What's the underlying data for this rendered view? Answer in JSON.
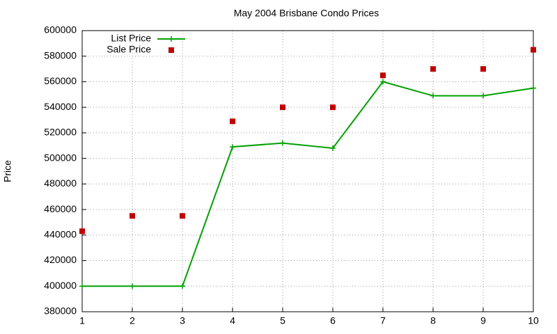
{
  "chart_data": {
    "type": "line",
    "title": "May 2004 Brisbane Condo Prices",
    "ylabel": "Price",
    "x": [
      1,
      2,
      3,
      4,
      5,
      6,
      7,
      8,
      9,
      10
    ],
    "series": [
      {
        "name": "List Price",
        "color": "#00a000",
        "mode": "lines+points",
        "marker": "plus",
        "values": [
          400000,
          400000,
          400000,
          509000,
          512000,
          508000,
          560000,
          549000,
          549000,
          555000
        ]
      },
      {
        "name": "Sale Price",
        "color": "#c00000",
        "mode": "points",
        "marker": "square",
        "values": [
          443000,
          455000,
          455000,
          529000,
          540000,
          540000,
          565000,
          570000,
          570000,
          585000
        ]
      }
    ],
    "xlim": [
      1,
      10
    ],
    "xticks": [
      1,
      2,
      3,
      4,
      5,
      6,
      7,
      8,
      9,
      10
    ],
    "ylim": [
      380000,
      600000
    ],
    "yticks": [
      380000,
      400000,
      420000,
      440000,
      460000,
      480000,
      500000,
      520000,
      540000,
      560000,
      580000,
      600000
    ],
    "grid": true,
    "legend": "top-left"
  }
}
